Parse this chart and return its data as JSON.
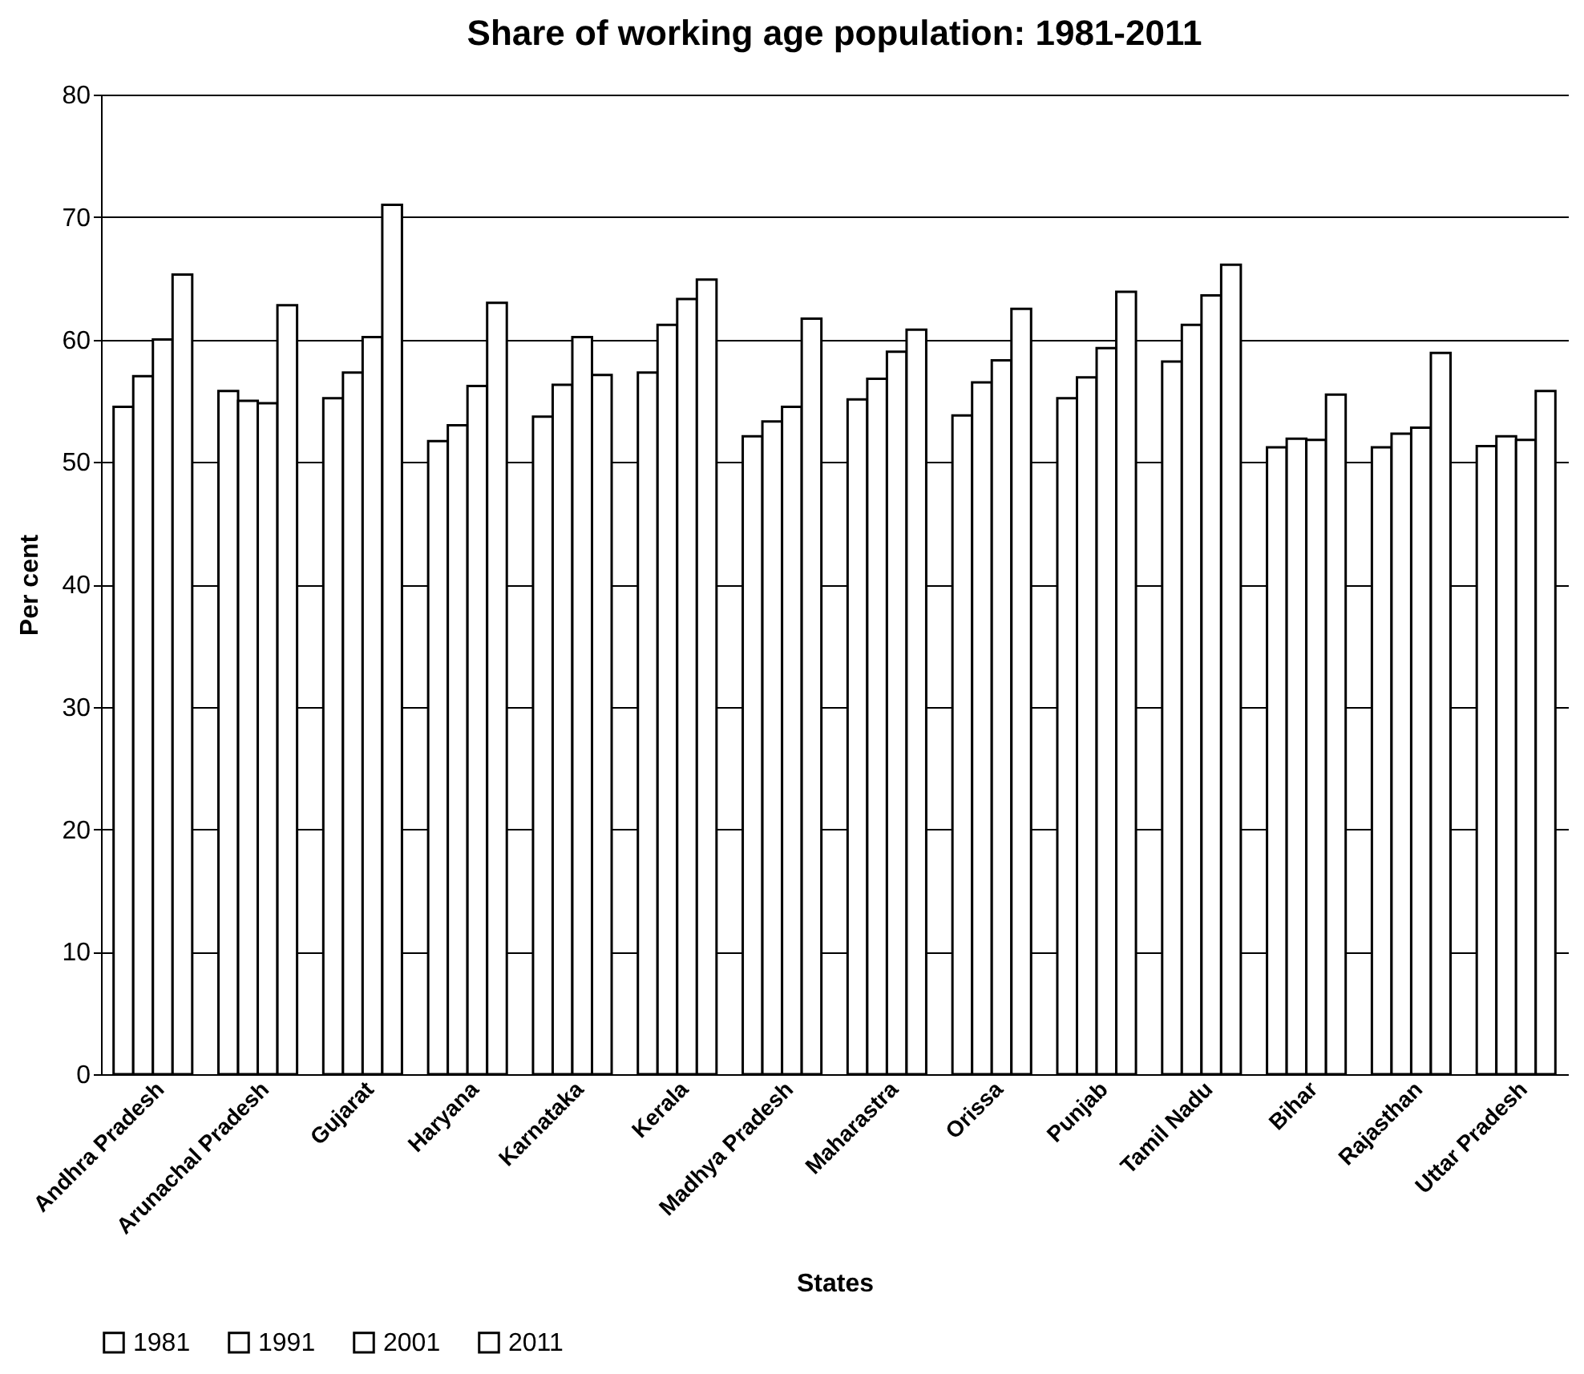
{
  "chart_data": {
    "type": "bar",
    "title": "Share of working age population: 1981-2011",
    "xlabel": "States",
    "ylabel": "Per cent",
    "categories": [
      "Andhra Pradesh",
      "Arunachal Pradesh",
      "Gujarat",
      "Haryana",
      "Karnataka",
      "Kerala",
      "Madhya Pradesh",
      "Maharastra",
      "Orissa",
      "Punjab",
      "Tamil Nadu",
      "Bihar",
      "Rajasthan",
      "Uttar Pradesh"
    ],
    "series": [
      {
        "name": "1981",
        "color": "#ffffff",
        "values": [
          54.5,
          55.8,
          55.2,
          51.7,
          53.7,
          57.3,
          52.1,
          55.1,
          53.8,
          55.2,
          58.2,
          51.2,
          51.2,
          51.3
        ]
      },
      {
        "name": "1991",
        "color": "#ffffff",
        "values": [
          57,
          55,
          57.3,
          53,
          56.3,
          61.2,
          53.3,
          56.8,
          56.5,
          56.9,
          61.2,
          51.9,
          52.3,
          52.1
        ]
      },
      {
        "name": "2001",
        "color": "#ffffff",
        "values": [
          60,
          54.8,
          60.2,
          56.2,
          60.2,
          63.3,
          54.5,
          59,
          58.3,
          59.3,
          63.6,
          51.8,
          52.8,
          51.8
        ]
      },
      {
        "name": "2011",
        "color": "#ffffff",
        "values": [
          65.3,
          62.8,
          71,
          63,
          57.1,
          64.9,
          61.7,
          60.8,
          62.5,
          63.9,
          66.1,
          55.5,
          58.9,
          55.8
        ]
      }
    ],
    "ylim": [
      0,
      80
    ],
    "yticks": [
      0,
      10,
      20,
      30,
      40,
      50,
      60,
      70,
      80
    ],
    "grid": "y",
    "legend": "bottom"
  }
}
